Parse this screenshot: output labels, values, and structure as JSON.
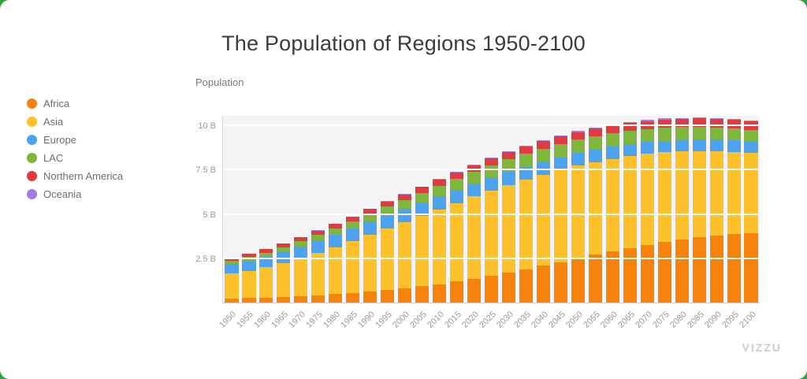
{
  "title": "The Population of Regions 1950-2100",
  "y_axis": {
    "title": "Population",
    "tick_labels": [
      "2.5 B",
      "5 B",
      "7.5 B",
      "10 B"
    ],
    "tick_values": [
      2.5,
      5,
      7.5,
      10
    ]
  },
  "legend": {
    "items": [
      {
        "label": "Africa",
        "color": "#f5830d"
      },
      {
        "label": "Asia",
        "color": "#fdc22b"
      },
      {
        "label": "Europe",
        "color": "#4da3f0"
      },
      {
        "label": "LAC",
        "color": "#7eb73c"
      },
      {
        "label": "Northern America",
        "color": "#e13b42"
      },
      {
        "label": "Oceania",
        "color": "#9b7de3"
      }
    ]
  },
  "watermark": "VIZZU",
  "chart_data": {
    "type": "bar",
    "stacked": true,
    "title": "The Population of Regions 1950-2100",
    "xlabel": "",
    "ylabel": "Population",
    "ylim": [
      0,
      10.6
    ],
    "y_tick_values": [
      2.5,
      5,
      7.5,
      10
    ],
    "unit": "billions",
    "categories": [
      "1950",
      "1955",
      "1960",
      "1965",
      "1970",
      "1975",
      "1980",
      "1985",
      "1990",
      "1995",
      "2000",
      "2005",
      "2010",
      "2015",
      "2020",
      "2025",
      "2030",
      "2035",
      "2040",
      "2045",
      "2050",
      "2055",
      "2060",
      "2065",
      "2070",
      "2075",
      "2080",
      "2085",
      "2090",
      "2095",
      "2100"
    ],
    "series": [
      {
        "name": "Africa",
        "color": "#f5830d",
        "values": [
          0.23,
          0.25,
          0.28,
          0.32,
          0.36,
          0.41,
          0.48,
          0.55,
          0.63,
          0.72,
          0.81,
          0.92,
          1.04,
          1.18,
          1.34,
          1.51,
          1.69,
          1.87,
          2.08,
          2.28,
          2.49,
          2.69,
          2.89,
          3.08,
          3.26,
          3.43,
          3.57,
          3.7,
          3.8,
          3.88,
          3.92
        ]
      },
      {
        "name": "Asia",
        "color": "#fdc22b",
        "values": [
          1.4,
          1.54,
          1.7,
          1.9,
          2.14,
          2.4,
          2.65,
          2.9,
          3.21,
          3.48,
          3.74,
          3.98,
          4.21,
          4.43,
          4.64,
          4.82,
          4.95,
          5.06,
          5.14,
          5.2,
          5.23,
          5.24,
          5.22,
          5.18,
          5.12,
          5.04,
          4.95,
          4.85,
          4.74,
          4.63,
          4.52
        ]
      },
      {
        "name": "Europe",
        "color": "#4da3f0",
        "values": [
          0.55,
          0.58,
          0.61,
          0.63,
          0.66,
          0.68,
          0.69,
          0.71,
          0.72,
          0.73,
          0.73,
          0.73,
          0.74,
          0.74,
          0.75,
          0.74,
          0.74,
          0.73,
          0.73,
          0.72,
          0.71,
          0.7,
          0.69,
          0.68,
          0.67,
          0.66,
          0.65,
          0.65,
          0.64,
          0.63,
          0.63
        ]
      },
      {
        "name": "LAC",
        "color": "#7eb73c",
        "values": [
          0.17,
          0.19,
          0.22,
          0.25,
          0.29,
          0.32,
          0.36,
          0.4,
          0.44,
          0.48,
          0.52,
          0.56,
          0.59,
          0.62,
          0.65,
          0.68,
          0.7,
          0.72,
          0.74,
          0.75,
          0.76,
          0.76,
          0.76,
          0.76,
          0.75,
          0.74,
          0.73,
          0.72,
          0.71,
          0.69,
          0.68
        ]
      },
      {
        "name": "Northern America",
        "color": "#e13b42",
        "values": [
          0.17,
          0.19,
          0.2,
          0.22,
          0.23,
          0.24,
          0.25,
          0.27,
          0.28,
          0.3,
          0.31,
          0.33,
          0.34,
          0.36,
          0.37,
          0.38,
          0.39,
          0.4,
          0.41,
          0.42,
          0.42,
          0.43,
          0.43,
          0.44,
          0.44,
          0.45,
          0.45,
          0.46,
          0.46,
          0.47,
          0.47
        ]
      },
      {
        "name": "Oceania",
        "color": "#9b7de3",
        "values": [
          0.01,
          0.01,
          0.02,
          0.02,
          0.02,
          0.02,
          0.02,
          0.02,
          0.03,
          0.03,
          0.03,
          0.03,
          0.04,
          0.04,
          0.04,
          0.05,
          0.05,
          0.05,
          0.05,
          0.05,
          0.06,
          0.06,
          0.06,
          0.06,
          0.06,
          0.07,
          0.07,
          0.07,
          0.07,
          0.07,
          0.07
        ]
      }
    ]
  }
}
